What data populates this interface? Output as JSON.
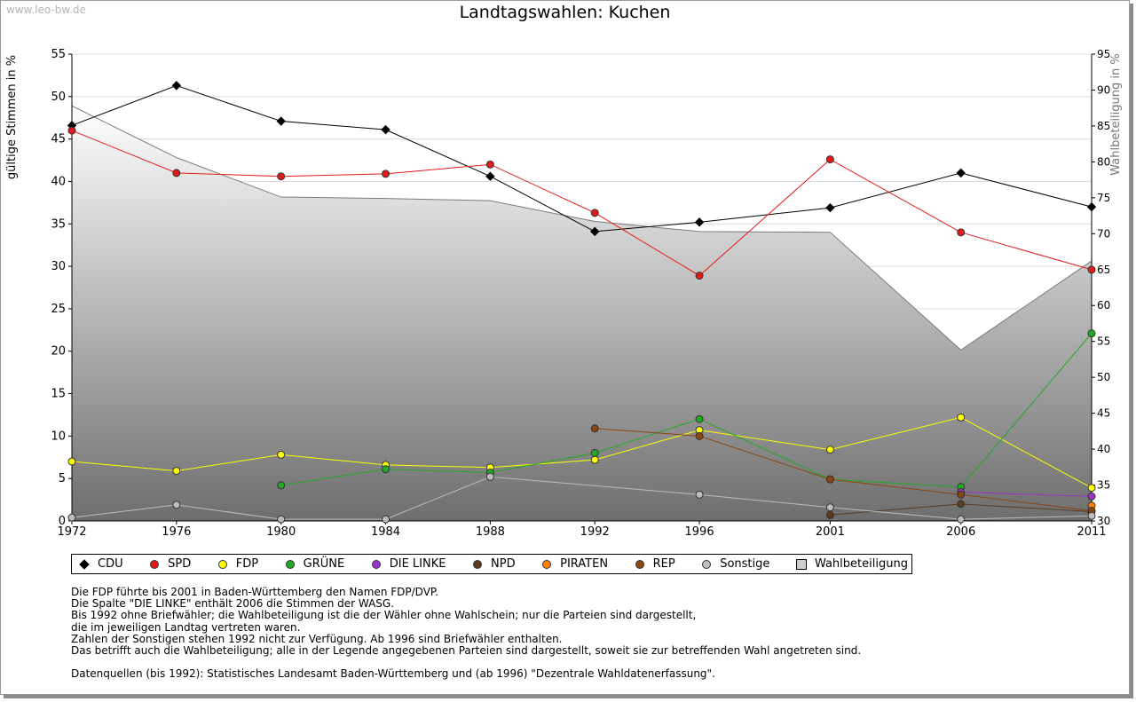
{
  "watermark": "www.leo-bw.de",
  "chart_data": {
    "type": "line",
    "title": "Landtagswahlen: Kuchen",
    "ylabel": "gültige Stimmen in %",
    "ylabel_right": "Wahlbeteiligung in %",
    "x": [
      1972,
      1976,
      1980,
      1984,
      1988,
      1992,
      1996,
      2001,
      2006,
      2011
    ],
    "ylim": [
      0,
      55
    ],
    "yticks": [
      0,
      5,
      10,
      15,
      20,
      25,
      30,
      35,
      40,
      45,
      50,
      55
    ],
    "ylim_right": [
      30,
      95
    ],
    "yticks_right": [
      30,
      35,
      40,
      45,
      50,
      55,
      60,
      65,
      70,
      75,
      80,
      85,
      90,
      95
    ],
    "grid": true,
    "legend_position": "bottom",
    "area": {
      "name": "Wahlbeteiligung",
      "values": [
        87.8,
        80.6,
        75.1,
        74.9,
        74.6,
        71.7,
        70.3,
        70.2,
        53.8,
        66.2
      ]
    },
    "series": [
      {
        "name": "CDU",
        "color": "#000000",
        "values": [
          46.6,
          51.3,
          47.1,
          46.1,
          40.6,
          34.1,
          35.2,
          36.9,
          41.0,
          37.0
        ]
      },
      {
        "name": "SPD",
        "color": "#e31a1c",
        "values": [
          46.0,
          41.0,
          40.6,
          40.9,
          42.0,
          36.3,
          28.9,
          42.6,
          34.0,
          29.6
        ]
      },
      {
        "name": "FDP",
        "color": "#ffff00",
        "values": [
          7.0,
          5.9,
          7.8,
          6.6,
          6.3,
          7.2,
          10.7,
          8.4,
          12.2,
          3.9
        ]
      },
      {
        "name": "GRÜNE",
        "color": "#22aa22",
        "values": [
          null,
          null,
          4.2,
          6.1,
          5.7,
          8.0,
          12.0,
          4.9,
          4.0,
          22.1
        ]
      },
      {
        "name": "DIE LINKE",
        "color": "#9933cc",
        "values": [
          null,
          null,
          null,
          null,
          null,
          null,
          null,
          null,
          3.4,
          2.9
        ]
      },
      {
        "name": "NPD",
        "color": "#5b3a1e",
        "values": [
          null,
          null,
          null,
          null,
          null,
          null,
          null,
          0.7,
          2.0,
          1.1
        ]
      },
      {
        "name": "PIRATEN",
        "color": "#ff8000",
        "values": [
          null,
          null,
          null,
          null,
          null,
          null,
          null,
          null,
          null,
          1.8
        ]
      },
      {
        "name": "REP",
        "color": "#8b4513",
        "values": [
          null,
          null,
          null,
          null,
          null,
          10.9,
          10.0,
          4.9,
          3.1,
          1.2
        ]
      },
      {
        "name": "Sonstige",
        "color": "#bdbdbd",
        "values": [
          0.4,
          1.9,
          0.2,
          0.2,
          5.2,
          null,
          3.1,
          1.6,
          0.2,
          0.6
        ]
      }
    ]
  },
  "notes": [
    "Die FDP führte bis 2001 in Baden-Württemberg den Namen FDP/DVP.",
    "Die Spalte \"DIE LINKE\" enthält 2006 die Stimmen der WASG.",
    "Bis 1992 ohne Briefwähler; die Wahlbeteiligung ist die der Wähler ohne Wahlschein; nur die Parteien sind dargestellt,",
    "die im jeweiligen Landtag vertreten waren.",
    "Zahlen der Sonstigen stehen 1992 nicht zur Verfügung. Ab 1996 sind Briefwähler enthalten.",
    "Das betrifft auch die Wahlbeteiligung; alle in der Legende angegebenen Parteien sind dargestellt, soweit sie zur betreffenden Wahl angetreten sind."
  ],
  "source": "Datenquellen (bis 1992): Statistisches Landesamt Baden-Württemberg und (ab 1996) \"Dezentrale Wahldatenerfassung\"."
}
